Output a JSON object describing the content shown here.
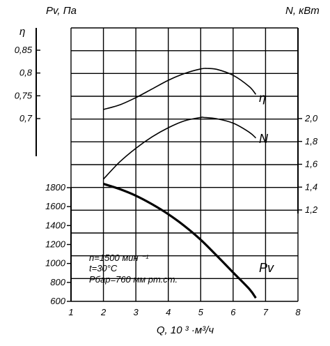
{
  "chart_data": {
    "type": "line",
    "title": "",
    "xlabel": "Q, 10 ³ ·м³/ч",
    "xlim": [
      1,
      8
    ],
    "x_ticks": [
      "1",
      "2",
      "3",
      "4",
      "5",
      "6",
      "7",
      "8"
    ],
    "axes": {
      "pv": {
        "label": "Pv, Па",
        "side": "left",
        "range": [
          600,
          1800
        ],
        "ticks": [
          "600",
          "800",
          "1000",
          "1200",
          "1400",
          "1600",
          "1800"
        ]
      },
      "eta": {
        "label": "η",
        "side": "left",
        "range": [
          0.7,
          0.85
        ],
        "ticks": [
          "0,7",
          "0,75",
          "0,8",
          "0,85"
        ]
      },
      "n": {
        "label": "N, кВт",
        "side": "right",
        "range": [
          1.2,
          2.0
        ],
        "ticks": [
          "1,2",
          "1,4",
          "1,6",
          "1,8",
          "2,0"
        ]
      }
    },
    "grid": true,
    "series": [
      {
        "name": "η",
        "axis": "eta",
        "x": [
          2.0,
          2.5,
          3.0,
          3.5,
          4.0,
          4.5,
          5.0,
          5.2,
          5.5,
          6.0,
          6.5,
          6.7
        ],
        "y": [
          0.72,
          0.73,
          0.746,
          0.765,
          0.784,
          0.799,
          0.809,
          0.81,
          0.808,
          0.795,
          0.77,
          0.753
        ]
      },
      {
        "name": "N",
        "axis": "n",
        "x": [
          2.0,
          2.5,
          3.0,
          3.5,
          4.0,
          4.5,
          5.0,
          5.1,
          5.5,
          6.0,
          6.5,
          6.7
        ],
        "y": [
          1.47,
          1.62,
          1.74,
          1.84,
          1.92,
          1.98,
          2.01,
          2.01,
          1.998,
          1.96,
          1.88,
          1.83
        ]
      },
      {
        "name": "Pv",
        "axis": "pv",
        "bold": true,
        "x": [
          2.0,
          2.5,
          3.0,
          3.5,
          4.0,
          4.5,
          5.0,
          5.5,
          6.0,
          6.5,
          6.7
        ],
        "y": [
          1840,
          1785,
          1715,
          1625,
          1520,
          1395,
          1250,
          1080,
          905,
          730,
          635
        ]
      }
    ],
    "annotations": [
      "n=1500 мин ⁻¹",
      "t=30°C",
      "Pбар=760 мм рт.ст."
    ]
  }
}
